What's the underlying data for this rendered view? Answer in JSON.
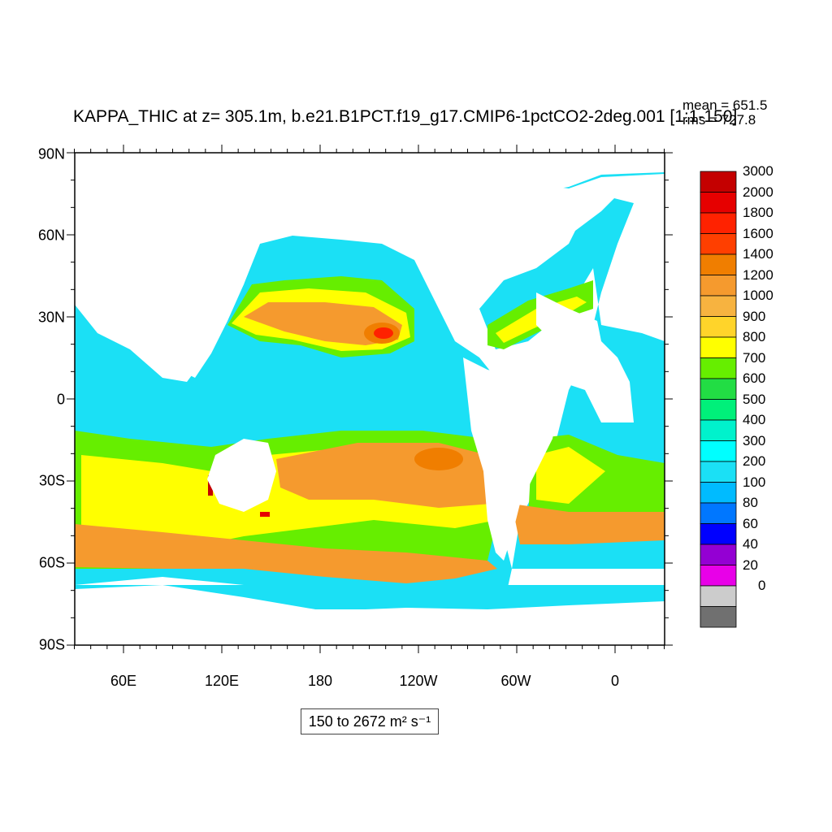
{
  "plot": {
    "title": "KAPPA_THIC at z= 305.1m, b.e21.B1PCT.f19_g17.CMIP6-1pctCO2-2deg.001 [1:1-150]",
    "stats": {
      "mean": "mean = 651.5",
      "rms": "rms = 727.8"
    },
    "range_label": "150 to 2672 m² s⁻¹",
    "y_ticks": [
      "90N",
      "60N",
      "30N",
      "0",
      "30S",
      "60S",
      "90S"
    ],
    "x_ticks": [
      "60E",
      "120E",
      "180",
      "120W",
      "60W",
      "0"
    ]
  },
  "colorbar": {
    "labels": [
      "3000",
      "2000",
      "1800",
      "1600",
      "1400",
      "1200",
      "1000",
      "900",
      "800",
      "700",
      "600",
      "500",
      "400",
      "300",
      "200",
      "100",
      "80",
      "60",
      "40",
      "20",
      "0"
    ],
    "colors": [
      "#c40000",
      "#e60000",
      "#ff2200",
      "#ff3f00",
      "#f07e00",
      "#f59a2e",
      "#f7b340",
      "#ffd42a",
      "#ffff00",
      "#66ee00",
      "#22dd44",
      "#00f07a",
      "#00f2cc",
      "#00ffff",
      "#1be0f5",
      "#00bbff",
      "#0077ff",
      "#0000ff",
      "#9400d3",
      "#e800e8",
      "#cccccc",
      "#707070"
    ]
  },
  "colors": {
    "ocean_base": "#1be0f5",
    "land": "#ffffff"
  }
}
